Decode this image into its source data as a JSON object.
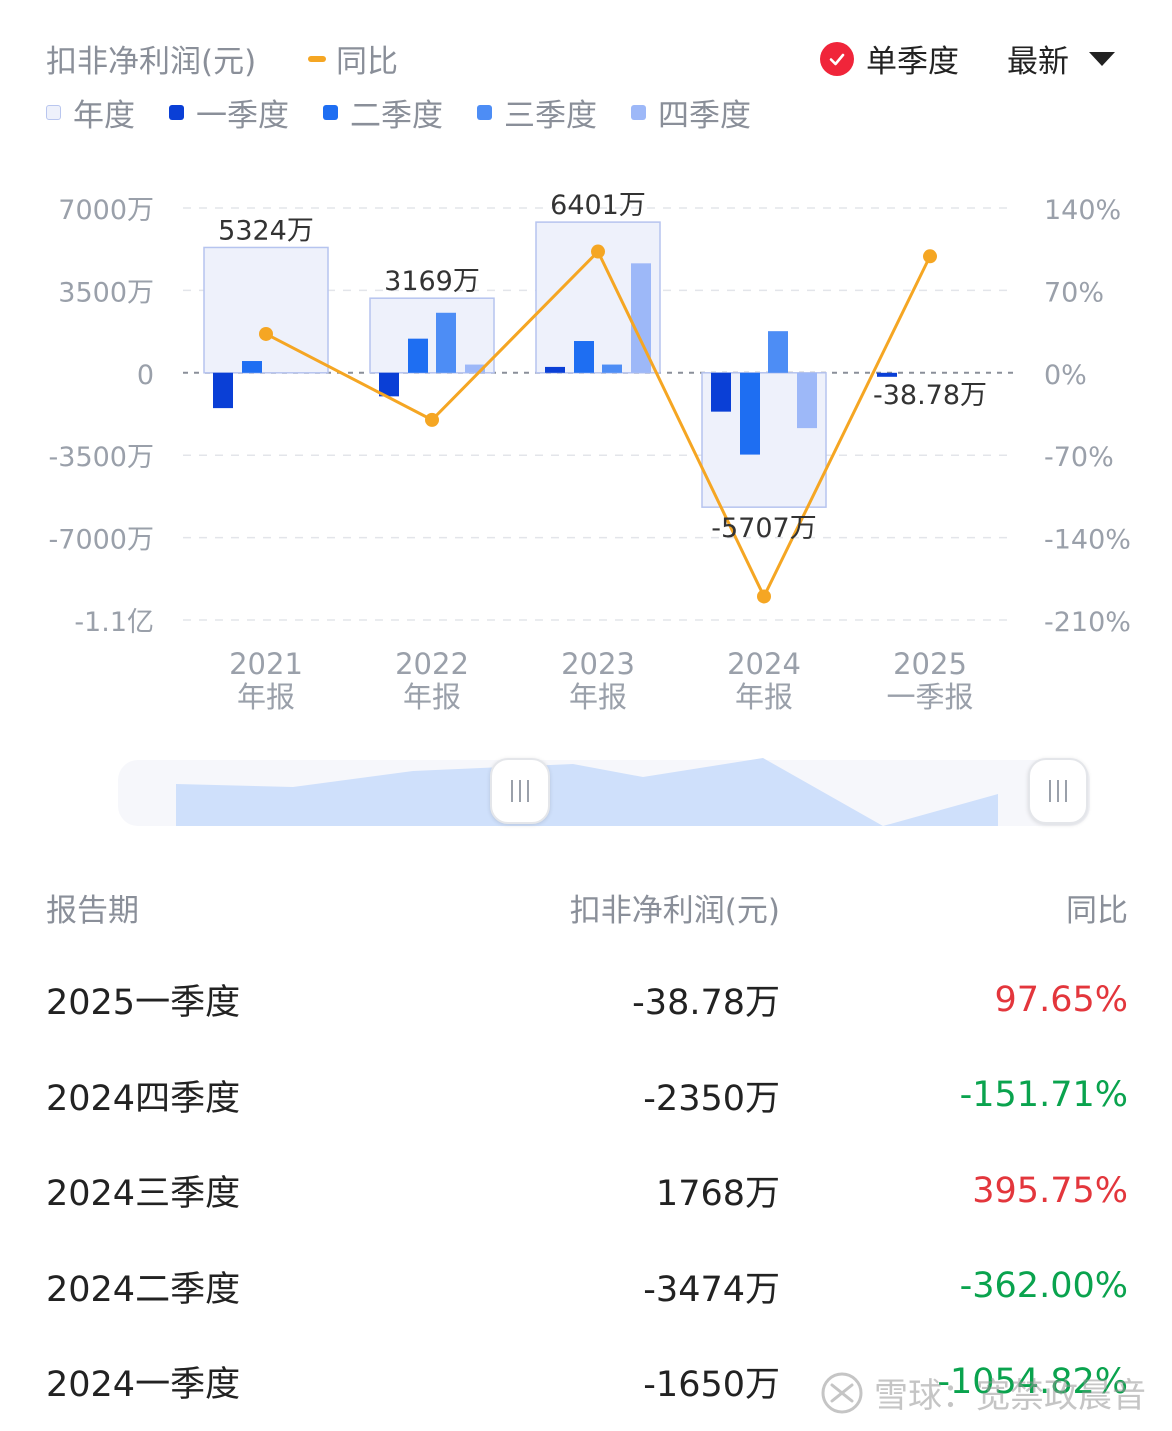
{
  "header": {
    "title": "扣非净利润(元)",
    "yoy_label": "同比",
    "single_quarter": "单季度",
    "latest": "最新"
  },
  "legend": {
    "items": [
      {
        "label": "年度",
        "color": "#eef1fb"
      },
      {
        "label": "一季度",
        "color": "#0a3fd6"
      },
      {
        "label": "二季度",
        "color": "#1e6ef2"
      },
      {
        "label": "三季度",
        "color": "#4d8df5"
      },
      {
        "label": "四季度",
        "color": "#9db8f8"
      }
    ]
  },
  "chart_data": {
    "type": "bar",
    "categories": [
      "2021\n年报",
      "2022\n年报",
      "2023\n年报",
      "2024\n年报",
      "2025\n一季报"
    ],
    "series": [
      {
        "name": "年度",
        "values": [
          5324,
          3169,
          6401,
          -5707,
          null
        ],
        "labels": [
          "5324万",
          "3169万",
          "6401万",
          "-5707万",
          null
        ]
      },
      {
        "name": "一季度",
        "values": [
          -1500,
          -1000,
          250,
          -1650,
          -38.78
        ]
      },
      {
        "name": "二季度",
        "values": [
          500,
          1450,
          1350,
          -3474,
          null
        ]
      },
      {
        "name": "三季度",
        "values": [
          null,
          2550,
          350,
          1768,
          null
        ]
      },
      {
        "name": "四季度",
        "values": [
          null,
          350,
          4650,
          -2350,
          null
        ]
      }
    ],
    "line_series": {
      "name": "同比",
      "values": [
        33,
        -40,
        103,
        -190,
        99
      ]
    },
    "point_labels": [
      "-38.78万"
    ],
    "y_left": {
      "ticks": [
        "7000万",
        "3500万",
        "0",
        "-3500万",
        "-7000万",
        "-1.1亿"
      ],
      "range": [
        -10500,
        7000
      ]
    },
    "y_right": {
      "ticks": [
        "140%",
        "70%",
        "0%",
        "-70%",
        "-140%",
        "-210%"
      ],
      "range": [
        -210,
        140
      ]
    },
    "grid": true,
    "legend": "top-left"
  },
  "table": {
    "headers": [
      "报告期",
      "扣非净利润(元)",
      "同比"
    ],
    "rows": [
      {
        "period": "2025一季度",
        "value": "-38.78万",
        "yoy": "97.65%",
        "yoy_color": "#e3363c"
      },
      {
        "period": "2024四季度",
        "value": "-2350万",
        "yoy": "-151.71%",
        "yoy_color": "#0aa34e"
      },
      {
        "period": "2024三季度",
        "value": "1768万",
        "yoy": "395.75%",
        "yoy_color": "#e3363c"
      },
      {
        "period": "2024二季度",
        "value": "-3474万",
        "yoy": "-362.00%",
        "yoy_color": "#0aa34e"
      },
      {
        "period": "2024一季度",
        "value": "-1650万",
        "yoy": "-1054.82%",
        "yoy_color": "#0aa34e"
      }
    ]
  },
  "watermark": "雪球：宽禁政晨音"
}
